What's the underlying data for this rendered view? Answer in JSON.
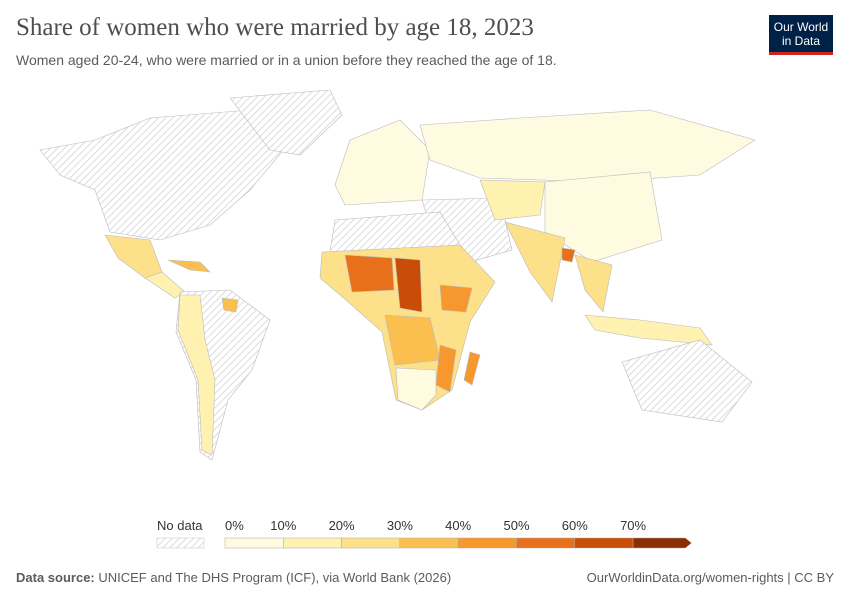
{
  "header": {
    "title": "Share of women who were married by age 18, 2023",
    "subtitle": "Women aged 20-24, who were married or in a union before they reached the age of 18.",
    "logo_text": [
      "Our World",
      "in Data"
    ]
  },
  "legend": {
    "no_data_label": "No data",
    "ticks": [
      "0%",
      "10%",
      "20%",
      "30%",
      "40%",
      "50%",
      "60%",
      "70%"
    ],
    "bin_colors": [
      "#fffbe0",
      "#fff2b0",
      "#fde08a",
      "#fbbf50",
      "#f7982e",
      "#e8701a",
      "#c94c07",
      "#8c2d04"
    ],
    "no_data_color": "#e6e6e6"
  },
  "footer": {
    "source_label": "Data source:",
    "source_text": " UNICEF and The DHS Program (ICF), via World Bank (2026)",
    "right_text": "OurWorldinData.org/women-rights | CC BY"
  }
}
